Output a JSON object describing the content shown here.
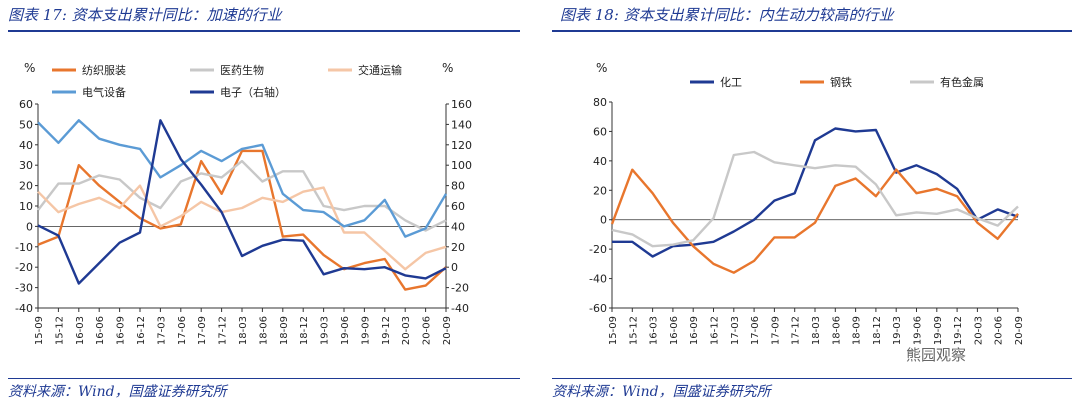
{
  "left": {
    "title": "图表 17: 资本支出累计同比：加速的行业",
    "source": "资料来源：Wind，国盛证券研究所"
  },
  "right": {
    "title": "图表 18: 资本支出累计同比：内生动力较高的行业",
    "source": "资料来源：Wind，国盛证券研究所"
  },
  "watermark": "熊园观察",
  "chart_data": [
    {
      "type": "line",
      "ylabel_left": "%",
      "ylabel_right": "%",
      "ylim_left": [
        -40,
        60
      ],
      "yticks_left": [
        "60",
        "50",
        "40",
        "30",
        "20",
        "10",
        "0",
        "-10",
        "-20",
        "-30",
        "-40"
      ],
      "ylim_right": [
        -40,
        160
      ],
      "yticks_right": [
        "160",
        "140",
        "120",
        "100",
        "80",
        "60",
        "40",
        "20",
        "0",
        "-20",
        "-40"
      ],
      "x": [
        "15-09",
        "15-12",
        "16-03",
        "16-06",
        "16-09",
        "16-12",
        "17-03",
        "17-06",
        "17-09",
        "17-12",
        "18-03",
        "18-06",
        "18-09",
        "18-12",
        "19-03",
        "19-06",
        "19-09",
        "19-12",
        "20-03",
        "20-06",
        "20-09"
      ],
      "legend_position": "top",
      "series": [
        {
          "name": "纺织服装",
          "color": "#e8762d",
          "axis": "left",
          "values": [
            -9,
            -5,
            30,
            20,
            12,
            4,
            -1,
            1,
            32,
            16,
            37,
            37,
            -5,
            -4,
            -14,
            -21,
            -18,
            -16,
            -31,
            -29,
            -20
          ]
        },
        {
          "name": "医药生物",
          "color": "#c8c8c8",
          "axis": "left",
          "values": [
            8,
            21,
            21,
            25,
            23,
            14,
            9,
            22,
            26,
            24,
            32,
            22,
            27,
            27,
            10,
            8,
            10,
            10,
            3,
            -2,
            3
          ]
        },
        {
          "name": "交通运输",
          "color": "#f5c6a6",
          "axis": "left",
          "values": [
            17,
            7,
            11,
            14,
            9,
            20,
            0,
            5,
            12,
            7,
            9,
            14,
            12,
            17,
            19,
            -3,
            -3,
            -12,
            -21,
            -13,
            -10
          ]
        },
        {
          "name": "电气设备",
          "color": "#5b9bd5",
          "axis": "left",
          "values": [
            51,
            41,
            52,
            43,
            40,
            38,
            24,
            30,
            37,
            32,
            38,
            40,
            16,
            8,
            7,
            0,
            3,
            13,
            -5,
            -1,
            16
          ]
        },
        {
          "name": "电子（右轴）",
          "color": "#1f3a93",
          "axis": "right",
          "values": [
            41,
            31,
            -16,
            4,
            24,
            34,
            144,
            106,
            81,
            54,
            11,
            21,
            27,
            26,
            -7,
            -1,
            -2,
            0,
            -8,
            -11,
            -1
          ]
        }
      ]
    },
    {
      "type": "line",
      "ylabel": "%",
      "ylim": [
        -60,
        80
      ],
      "yticks": [
        "80",
        "60",
        "40",
        "20",
        "0",
        "-20",
        "-40",
        "-60"
      ],
      "x": [
        "15-09",
        "15-12",
        "16-03",
        "16-06",
        "16-09",
        "16-12",
        "17-03",
        "17-06",
        "17-09",
        "17-12",
        "18-03",
        "18-06",
        "18-09",
        "18-12",
        "19-03",
        "19-06",
        "19-09",
        "19-12",
        "20-03",
        "20-06",
        "20-09"
      ],
      "legend_position": "top",
      "series": [
        {
          "name": "化工",
          "color": "#1f3a93",
          "values": [
            -15,
            -15,
            -25,
            -18,
            -17,
            -15,
            -8,
            0,
            13,
            18,
            54,
            62,
            60,
            61,
            32,
            37,
            31,
            21,
            0,
            7,
            2
          ]
        },
        {
          "name": "钢铁",
          "color": "#e8762d",
          "values": [
            -3,
            34,
            18,
            -2,
            -18,
            -30,
            -36,
            -28,
            -12,
            -12,
            -2,
            23,
            28,
            16,
            34,
            18,
            21,
            16,
            -2,
            -13,
            4
          ]
        },
        {
          "name": "有色金属",
          "color": "#c8c8c8",
          "values": [
            -7,
            -10,
            -18,
            -17,
            -14,
            1,
            44,
            46,
            39,
            37,
            35,
            37,
            36,
            24,
            3,
            5,
            4,
            7,
            1,
            -4,
            9
          ]
        }
      ]
    }
  ]
}
